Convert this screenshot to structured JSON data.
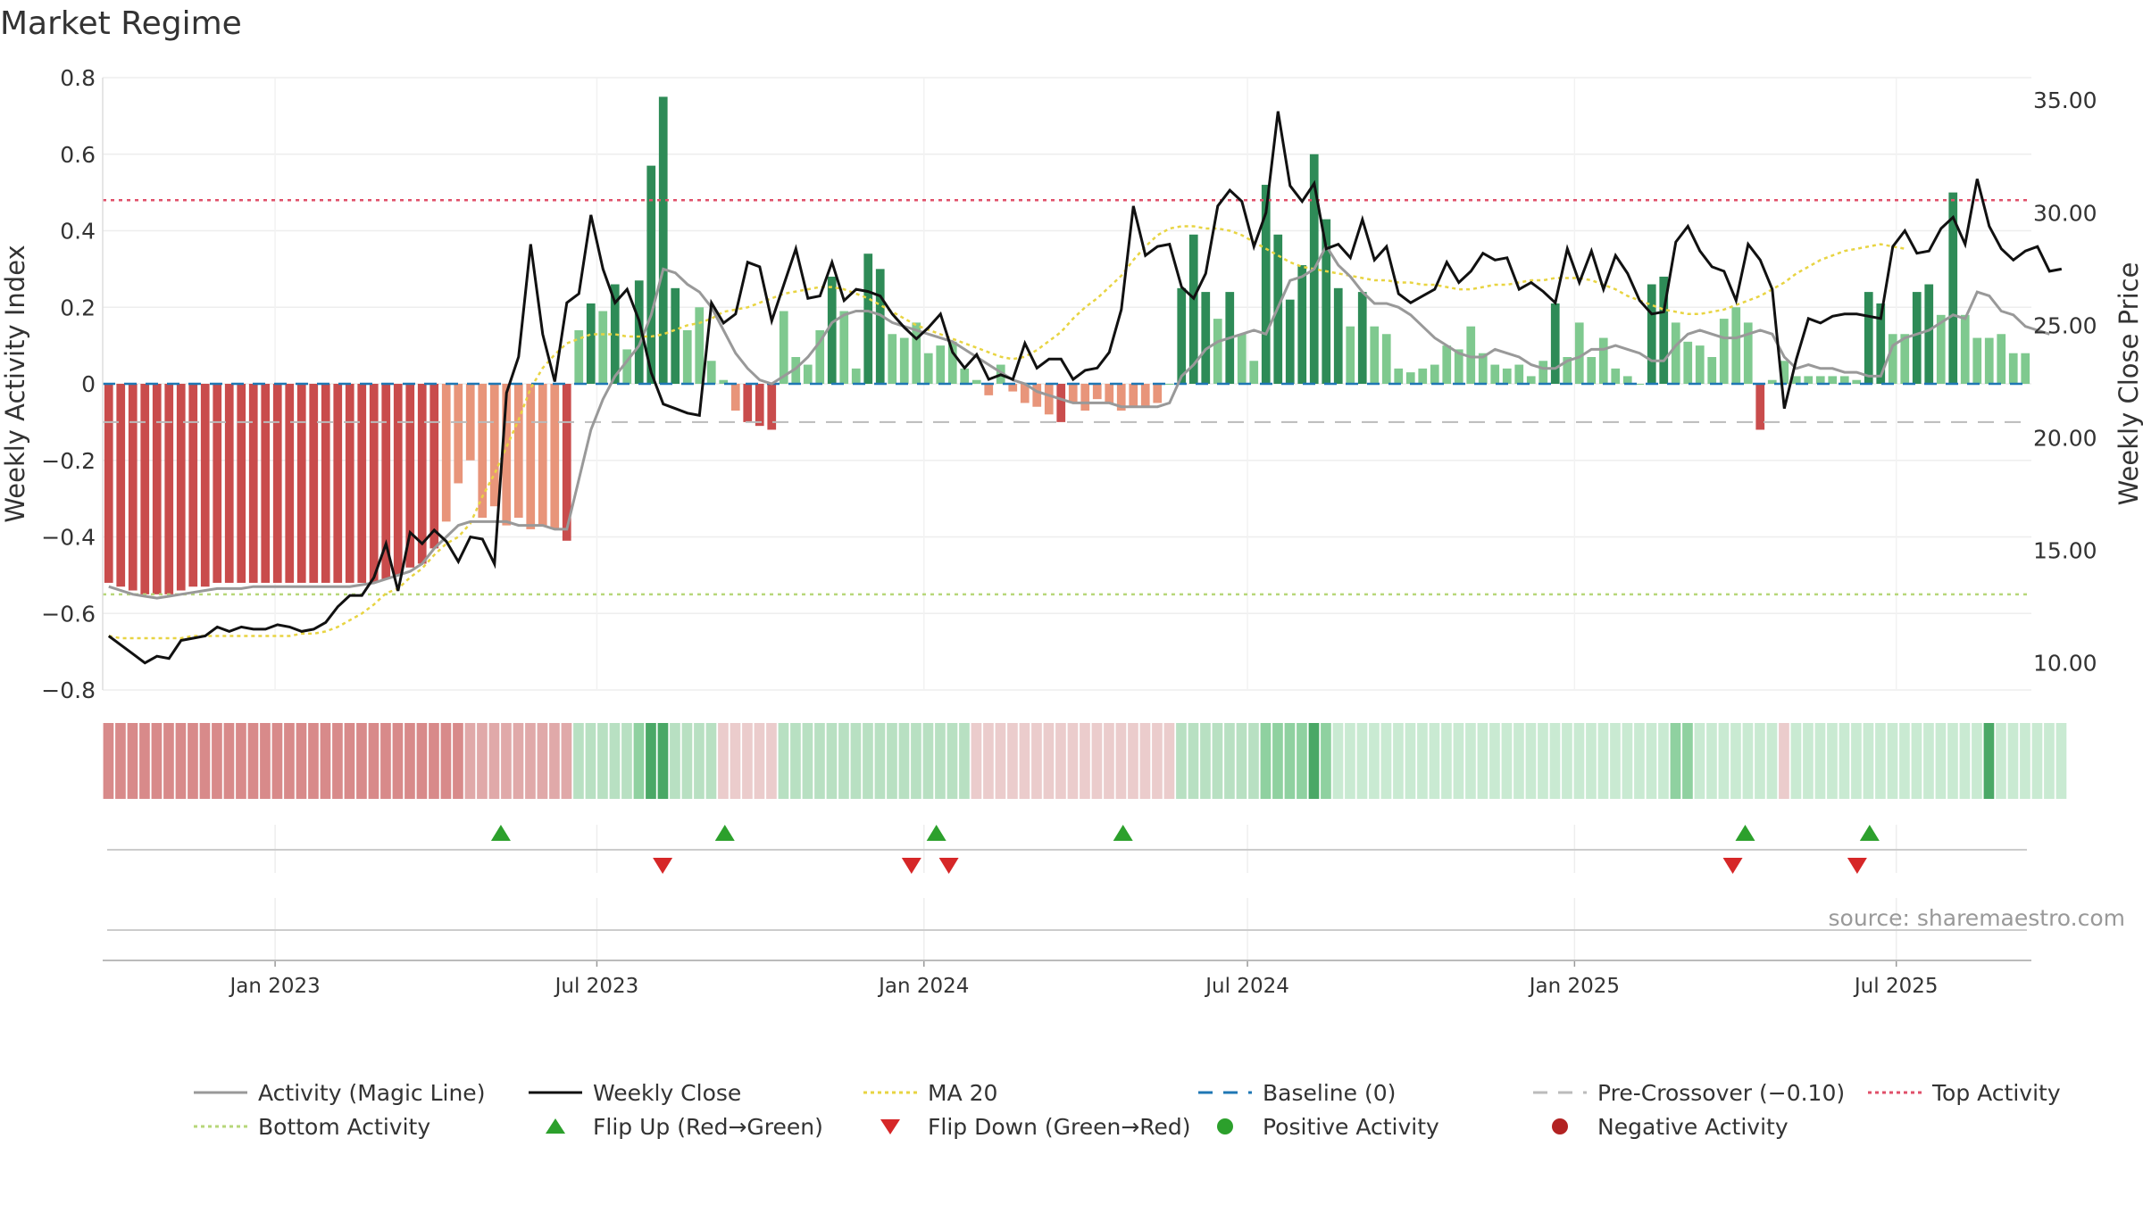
{
  "title": "Market Regime",
  "source": "source: sharemaestro.com",
  "colors": {
    "deep_red": "#c94c4c",
    "light_red": "#e8957a",
    "deep_green": "#2e8b57",
    "light_green": "#7fc98f",
    "magic": "#999999",
    "close": "#111111",
    "ma20": "#e8d442",
    "baseline": "#1f77b4",
    "pre": "#bbbbbb",
    "top": "#e0506a",
    "bottom": "#b7d77a",
    "flip_up": "#2ca02c",
    "flip_down": "#d62728"
  },
  "chart_data": {
    "type": "bar",
    "x_range": [
      "2022-09-26",
      "2025-09-15"
    ],
    "x_ticks": [
      "Jan 2023",
      "Jul 2023",
      "Jan 2024",
      "Jul 2024",
      "Jan 2025",
      "Jul 2025"
    ],
    "y_left": {
      "label": "Weekly Activity Index",
      "range": [
        -0.8,
        0.8
      ],
      "ticks": [
        "0.8",
        "0.6",
        "0.4",
        "0.2",
        "0",
        "−0.2",
        "−0.4",
        "−0.6",
        "−0.8"
      ]
    },
    "y_right": {
      "label": "Weekly Close Price",
      "range": [
        8.8,
        36.0
      ],
      "ticks": [
        "35.00",
        "30.00",
        "25.00",
        "20.00",
        "15.00",
        "10.00"
      ]
    },
    "levels": {
      "top_activity": 0.48,
      "bottom_activity": -0.55,
      "pre_crossover": -0.1,
      "baseline": 0
    },
    "activity": [
      -0.52,
      -0.53,
      -0.54,
      -0.55,
      -0.55,
      -0.55,
      -0.54,
      -0.53,
      -0.53,
      -0.52,
      -0.52,
      -0.52,
      -0.52,
      -0.52,
      -0.52,
      -0.52,
      -0.52,
      -0.52,
      -0.52,
      -0.52,
      -0.52,
      -0.52,
      -0.52,
      -0.51,
      -0.5,
      -0.48,
      -0.47,
      -0.43,
      -0.36,
      -0.26,
      -0.2,
      -0.35,
      -0.32,
      -0.37,
      -0.35,
      -0.38,
      -0.37,
      -0.38,
      -0.41,
      0.14,
      0.21,
      0.19,
      0.26,
      0.09,
      0.27,
      0.57,
      0.75,
      0.25,
      0.14,
      0.2,
      0.06,
      0.01,
      -0.07,
      -0.1,
      -0.11,
      -0.12,
      0.19,
      0.07,
      0.05,
      0.14,
      0.28,
      0.19,
      0.04,
      0.34,
      0.3,
      0.13,
      0.12,
      0.16,
      0.08,
      0.1,
      0.11,
      0.04,
      0.01,
      -0.03,
      0.05,
      -0.02,
      -0.05,
      -0.06,
      -0.08,
      -0.1,
      -0.05,
      -0.07,
      -0.04,
      -0.05,
      -0.07,
      -0.06,
      -0.06,
      -0.05,
      0.0,
      0.25,
      0.39,
      0.24,
      0.17,
      0.24,
      0.13,
      0.06,
      0.52,
      0.39,
      0.22,
      0.31,
      0.6,
      0.43,
      0.25,
      0.15,
      0.24,
      0.15,
      0.13,
      0.04,
      0.03,
      0.04,
      0.05,
      0.1,
      0.09,
      0.15,
      0.08,
      0.05,
      0.04,
      0.05,
      0.02,
      0.06,
      0.21,
      0.07,
      0.16,
      0.07,
      0.12,
      0.04,
      0.02,
      0.0,
      0.26,
      0.28,
      0.16,
      0.11,
      0.1,
      0.07,
      0.17,
      0.2,
      0.16,
      -0.12,
      0.01,
      0.06,
      0.02,
      0.02,
      0.02,
      0.02,
      0.02,
      0.01,
      0.24,
      0.21,
      0.13,
      0.13,
      0.24,
      0.26,
      0.18,
      0.5,
      0.18,
      0.12,
      0.12,
      0.13,
      0.08,
      0.08
    ],
    "magic_line": [
      -0.53,
      -0.54,
      -0.55,
      -0.555,
      -0.56,
      -0.555,
      -0.55,
      -0.545,
      -0.54,
      -0.535,
      -0.535,
      -0.535,
      -0.53,
      -0.53,
      -0.53,
      -0.53,
      -0.53,
      -0.53,
      -0.53,
      -0.53,
      -0.53,
      -0.525,
      -0.52,
      -0.51,
      -0.5,
      -0.49,
      -0.47,
      -0.43,
      -0.4,
      -0.37,
      -0.36,
      -0.36,
      -0.36,
      -0.36,
      -0.37,
      -0.37,
      -0.37,
      -0.38,
      -0.38,
      -0.25,
      -0.12,
      -0.04,
      0.02,
      0.06,
      0.1,
      0.18,
      0.3,
      0.29,
      0.26,
      0.24,
      0.2,
      0.14,
      0.08,
      0.04,
      0.01,
      0.0,
      0.02,
      0.04,
      0.07,
      0.11,
      0.16,
      0.18,
      0.19,
      0.19,
      0.18,
      0.16,
      0.15,
      0.14,
      0.13,
      0.12,
      0.11,
      0.09,
      0.07,
      0.05,
      0.03,
      0.01,
      0.0,
      -0.02,
      -0.03,
      -0.04,
      -0.05,
      -0.05,
      -0.05,
      -0.05,
      -0.06,
      -0.06,
      -0.06,
      -0.06,
      -0.05,
      0.02,
      0.05,
      0.09,
      0.11,
      0.12,
      0.13,
      0.14,
      0.13,
      0.2,
      0.27,
      0.28,
      0.3,
      0.36,
      0.31,
      0.28,
      0.24,
      0.21,
      0.21,
      0.2,
      0.18,
      0.15,
      0.12,
      0.1,
      0.08,
      0.07,
      0.07,
      0.09,
      0.08,
      0.07,
      0.05,
      0.04,
      0.04,
      0.06,
      0.07,
      0.09,
      0.09,
      0.1,
      0.09,
      0.08,
      0.06,
      0.06,
      0.1,
      0.13,
      0.14,
      0.13,
      0.12,
      0.12,
      0.13,
      0.14,
      0.13,
      0.07,
      0.04,
      0.05,
      0.04,
      0.04,
      0.03,
      0.03,
      0.02,
      0.02,
      0.1,
      0.12,
      0.13,
      0.14,
      0.16,
      0.18,
      0.17,
      0.24,
      0.23,
      0.19,
      0.18,
      0.15,
      0.14,
      0.13
    ],
    "weekly_close": [
      11.2,
      10.8,
      10.4,
      10.0,
      10.3,
      10.2,
      11.0,
      11.1,
      11.2,
      11.6,
      11.4,
      11.6,
      11.5,
      11.5,
      11.7,
      11.6,
      11.4,
      11.5,
      11.8,
      12.5,
      13.0,
      13.0,
      13.8,
      15.3,
      13.2,
      15.8,
      15.3,
      15.9,
      15.4,
      14.5,
      15.6,
      15.5,
      14.4,
      22.0,
      23.6,
      28.6,
      24.6,
      22.5,
      26.0,
      26.4,
      29.9,
      27.5,
      26.0,
      26.6,
      25.2,
      22.9,
      21.5,
      21.3,
      21.1,
      21.0,
      26.0,
      25.1,
      25.5,
      27.8,
      27.6,
      25.2,
      26.8,
      28.4,
      26.2,
      26.3,
      27.8,
      26.1,
      26.6,
      26.5,
      26.3,
      25.5,
      24.9,
      24.4,
      24.9,
      25.5,
      23.8,
      23.1,
      23.7,
      22.6,
      22.8,
      22.6,
      24.2,
      23.1,
      23.5,
      23.5,
      22.6,
      23.0,
      23.1,
      23.8,
      25.7,
      30.3,
      28.1,
      28.5,
      28.6,
      26.7,
      26.2,
      27.3,
      30.3,
      31.0,
      30.5,
      28.5,
      30.0,
      34.5,
      31.2,
      30.5,
      31.3,
      28.4,
      28.6,
      28.0,
      29.7,
      27.9,
      28.5,
      26.4,
      26.0,
      26.3,
      26.6,
      27.8,
      26.9,
      27.4,
      28.2,
      27.9,
      28.0,
      26.6,
      26.9,
      26.5,
      26.0,
      28.4,
      26.9,
      28.3,
      26.6,
      28.1,
      27.3,
      26.1,
      25.5,
      25.6,
      28.7,
      29.4,
      28.3,
      27.6,
      27.4,
      26.1,
      28.6,
      27.9,
      26.6,
      21.3,
      23.5,
      25.3,
      25.1,
      25.4,
      25.5,
      25.5,
      25.4,
      25.3,
      28.5,
      29.2,
      28.2,
      28.3,
      29.3,
      29.8,
      28.6,
      31.5,
      29.4,
      28.4,
      27.9,
      28.3,
      28.5,
      27.4,
      27.5
    ],
    "ma20": [
      11.2,
      11.1,
      11.1,
      11.1,
      11.1,
      11.1,
      11.1,
      11.2,
      11.2,
      11.2,
      11.2,
      11.2,
      11.2,
      11.2,
      11.2,
      11.2,
      11.3,
      11.3,
      11.4,
      11.6,
      11.9,
      12.2,
      12.6,
      13.1,
      13.3,
      13.8,
      14.2,
      14.8,
      15.3,
      15.6,
      16.2,
      17.4,
      18.4,
      19.6,
      20.8,
      22.2,
      23.1,
      23.7,
      24.2,
      24.4,
      24.6,
      24.6,
      24.6,
      24.5,
      24.5,
      24.5,
      24.6,
      24.8,
      25.0,
      25.1,
      25.3,
      25.6,
      25.7,
      25.8,
      26.0,
      26.2,
      26.4,
      26.5,
      26.6,
      26.7,
      26.7,
      26.6,
      26.4,
      26.2,
      25.9,
      25.6,
      25.3,
      25.0,
      24.8,
      24.6,
      24.4,
      24.2,
      24.0,
      23.8,
      23.6,
      23.5,
      23.6,
      23.9,
      24.3,
      24.7,
      25.3,
      25.8,
      26.2,
      26.7,
      27.2,
      27.9,
      28.5,
      29.0,
      29.3,
      29.4,
      29.4,
      29.3,
      29.3,
      29.2,
      29.0,
      28.7,
      28.4,
      28.1,
      27.8,
      27.6,
      27.5,
      27.4,
      27.3,
      27.2,
      27.1,
      27.0,
      27.0,
      26.9,
      26.9,
      26.8,
      26.8,
      26.7,
      26.6,
      26.6,
      26.7,
      26.8,
      26.8,
      26.9,
      27.0,
      27.0,
      27.1,
      27.1,
      27.1,
      27.0,
      26.8,
      26.6,
      26.3,
      26.1,
      25.9,
      25.7,
      25.6,
      25.5,
      25.5,
      25.6,
      25.7,
      25.9,
      26.1,
      26.3,
      26.6,
      26.9,
      27.3,
      27.6,
      27.9,
      28.1,
      28.3,
      28.4,
      28.5,
      28.6,
      28.5,
      28.4
    ],
    "regime_strip": [
      1,
      1,
      1,
      1,
      1,
      1,
      1,
      1,
      1,
      1,
      1,
      1,
      1,
      1,
      1,
      1,
      1,
      1,
      1,
      1,
      1,
      1,
      1,
      1,
      1,
      1,
      1,
      1,
      1,
      1,
      1,
      1,
      1,
      1,
      1,
      1,
      1,
      1,
      1,
      2,
      2,
      2,
      2,
      2,
      3,
      4,
      4,
      2,
      2,
      2,
      2,
      0,
      0,
      0,
      0,
      0,
      2,
      2,
      2,
      2,
      2,
      2,
      2,
      2,
      2,
      2,
      2,
      2,
      2,
      2,
      2,
      2,
      0,
      0,
      0,
      0,
      0,
      0,
      0,
      0,
      0,
      0,
      0,
      0,
      0,
      0,
      0,
      0,
      0,
      2,
      2,
      2,
      2,
      2,
      2,
      2,
      3,
      3,
      3,
      3,
      4,
      3,
      2,
      2,
      2,
      2,
      2,
      2,
      2,
      2,
      2,
      2,
      2,
      2,
      2,
      2,
      2,
      2,
      2,
      2,
      2,
      2,
      2,
      2,
      2,
      2,
      2,
      2,
      2,
      2,
      3,
      3,
      2,
      2,
      2,
      2,
      2,
      2,
      2,
      0,
      2,
      2,
      2,
      2,
      2,
      2,
      2,
      2,
      2,
      2,
      2,
      2,
      2,
      2,
      2,
      2,
      4,
      2,
      2,
      2,
      2,
      2,
      2
    ],
    "flips_up": [
      "2023-05-08",
      "2023-09-11",
      "2024-01-08",
      "2024-04-22",
      "2025-04-07",
      "2025-06-16"
    ],
    "flips_down": [
      "2023-08-07",
      "2023-12-25",
      "2024-01-15",
      "2025-03-31",
      "2025-06-09"
    ]
  },
  "legend": [
    {
      "label": "Activity (Magic Line)",
      "symbol": "line-gray"
    },
    {
      "label": "Weekly Close",
      "symbol": "line-black"
    },
    {
      "label": "MA 20",
      "symbol": "dotted-yellow"
    },
    {
      "label": "Baseline (0)",
      "symbol": "dashed-blue"
    },
    {
      "label": "Pre-Crossover (−0.10)",
      "symbol": "dashed-gray"
    },
    {
      "label": "Top Activity",
      "symbol": "dotted-red"
    },
    {
      "label": "Bottom Activity",
      "symbol": "dotted-green"
    },
    {
      "label": "Flip Up (Red→Green)",
      "symbol": "triangle-up"
    },
    {
      "label": "Flip Down (Green→Red)",
      "symbol": "triangle-down"
    },
    {
      "label": "Positive Activity",
      "symbol": "dot-green"
    },
    {
      "label": "Negative Activity",
      "symbol": "dot-red"
    }
  ]
}
